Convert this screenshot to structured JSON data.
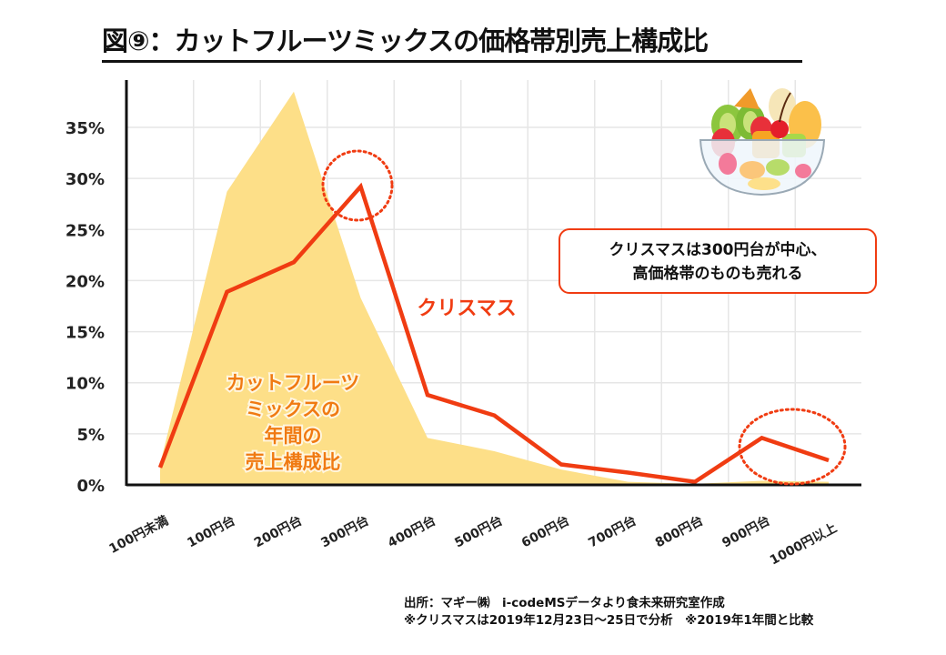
{
  "title": "図⑨：カットフルーツミックスの価格帯別売上構成比",
  "callout": {
    "line1": "クリスマスは300円台が中心、",
    "line2": "高価格帯のものも売れる"
  },
  "source": {
    "line1": "出所：マギー㈱　i-codeMSデータより食未来研究室作成",
    "line2": "※クリスマスは2019年12月23日～25日で分析　※2019年1年間と比較"
  },
  "illustration": "fruit-bowl-icon",
  "colors": {
    "christmas_line": "#f03c12",
    "annual_area": "#fddf88",
    "annual_label": "#f07a12",
    "highlight_circle": "#f03c12",
    "grid": "#e6e6e6",
    "axis": "#111111"
  },
  "chart_data": {
    "type": "line",
    "title": "図⑨：カットフルーツミックスの価格帯別売上構成比",
    "xlabel": "",
    "ylabel": "",
    "categories": [
      "100円未満",
      "100円台",
      "200円台",
      "300円台",
      "400円台",
      "500円台",
      "600円台",
      "700円台",
      "800円台",
      "900円台",
      "1000円以上"
    ],
    "y_ticks": [
      "0%",
      "5%",
      "10%",
      "15%",
      "20%",
      "25%",
      "30%",
      "35%"
    ],
    "ylim": [
      0,
      35
    ],
    "grid": true,
    "series": [
      {
        "name": "カットフルーツミックスの年間の売上構成比",
        "label_lines": [
          "カットフルーツ",
          "ミックスの",
          "年間の",
          "売上構成比"
        ],
        "kind": "area",
        "values": [
          2.0,
          28.7,
          38.5,
          18.3,
          4.6,
          3.3,
          1.5,
          0.3,
          0.1,
          0.4,
          0.3
        ]
      },
      {
        "name": "クリスマス",
        "label_lines": [
          "クリスマス"
        ],
        "kind": "line",
        "values": [
          1.7,
          18.9,
          21.8,
          29.2,
          8.8,
          6.8,
          2.0,
          1.2,
          0.3,
          4.6,
          2.4
        ]
      }
    ],
    "annotations": [
      {
        "type": "dotted-circle",
        "target": "300円台 クリスマス peak"
      },
      {
        "type": "dotted-circle",
        "target": "900円台〜1000円以上 クリスマス"
      }
    ]
  }
}
